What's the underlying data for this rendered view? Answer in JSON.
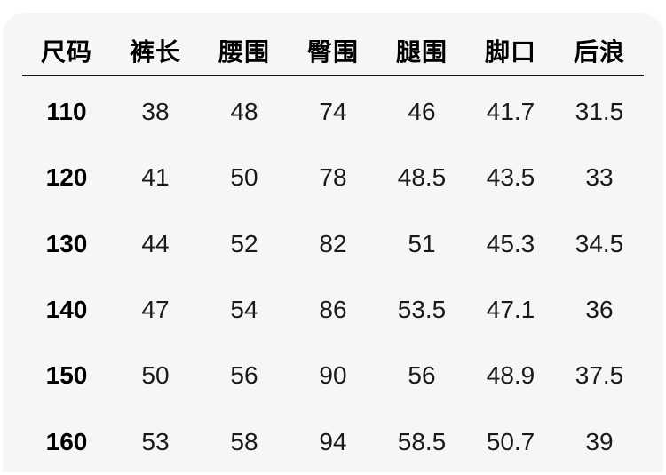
{
  "table": {
    "headers": [
      {
        "label": "尺码",
        "name": "size"
      },
      {
        "label": "裤长",
        "name": "pants-length"
      },
      {
        "label": "腰围",
        "name": "waist"
      },
      {
        "label": "臀围",
        "name": "hip"
      },
      {
        "label": "腿围",
        "name": "thigh"
      },
      {
        "label": "脚口",
        "name": "leg-opening"
      },
      {
        "label": "后浪",
        "name": "back-rise"
      }
    ],
    "rows": [
      [
        "110",
        "38",
        "48",
        "74",
        "46",
        "41.7",
        "31.5"
      ],
      [
        "120",
        "41",
        "50",
        "78",
        "48.5",
        "43.5",
        "33"
      ],
      [
        "130",
        "44",
        "52",
        "82",
        "51",
        "45.3",
        "34.5"
      ],
      [
        "140",
        "47",
        "54",
        "86",
        "53.5",
        "47.1",
        "36"
      ],
      [
        "150",
        "50",
        "56",
        "90",
        "56",
        "48.9",
        "37.5"
      ],
      [
        "160",
        "53",
        "58",
        "94",
        "58.5",
        "50.7",
        "39"
      ]
    ]
  },
  "colors": {
    "page_background": "#ffffff",
    "card_background": "#f6f6f7",
    "text": "#1a1a1a",
    "header_text": "#000000",
    "divider": "#111111"
  }
}
